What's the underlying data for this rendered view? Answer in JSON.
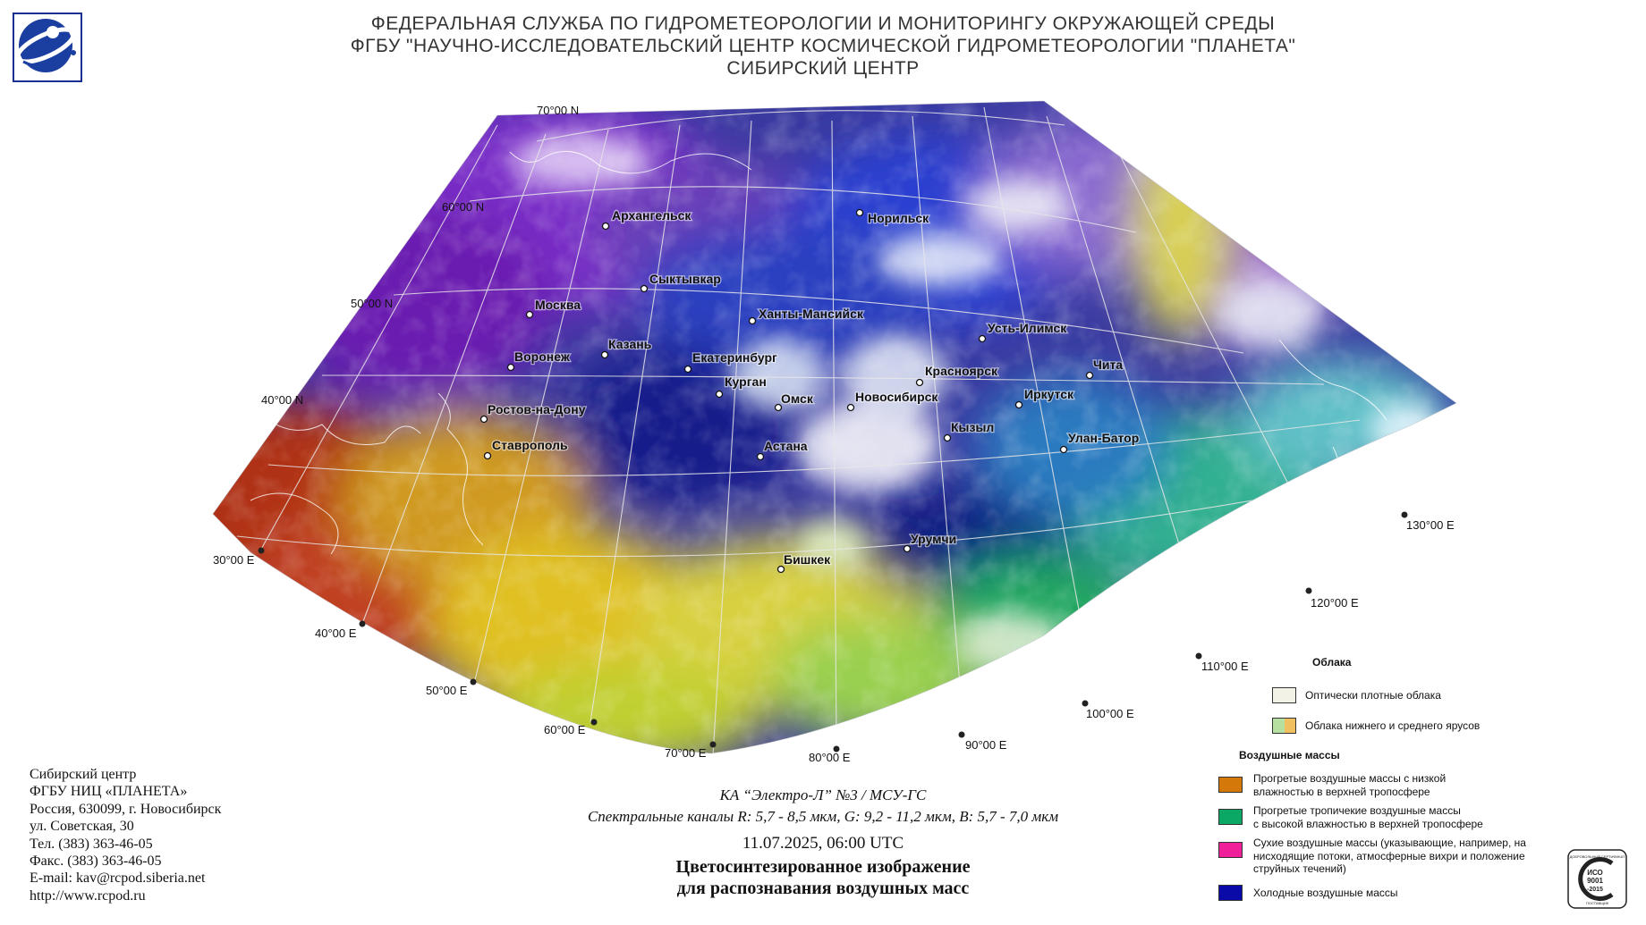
{
  "header": {
    "line1": "ФЕДЕРАЛЬНАЯ СЛУЖБА ПО ГИДРОМЕТЕОРОЛОГИИ И МОНИТОРИНГУ ОКРУЖАЮЩЕЙ СРЕДЫ",
    "line2": "ФГБУ \"НАУЧНО-ИССЛЕДОВАТЕЛЬСКИЙ ЦЕНТР КОСМИЧЕСКОЙ ГИДРОМЕТЕОРОЛОГИИ \"ПЛАНЕТА\"",
    "line3": "СИБИРСКИЙ ЦЕНТР"
  },
  "map": {
    "latitude_labels": [
      "70°00 N",
      "60°00 N",
      "50°00 N",
      "40°00 N"
    ],
    "longitude_labels": [
      "30°00 E",
      "40°00 E",
      "50°00 E",
      "60°00 E",
      "70°00 E",
      "80°00 E",
      "90°00 E",
      "100°00 E",
      "110°00 E",
      "120°00 E",
      "130°00 E"
    ],
    "cities": [
      "Архангельск",
      "Норильск",
      "Сыктывкар",
      "Москва",
      "Ханты-Мансийск",
      "Усть-Илимск",
      "Казань",
      "Воронеж",
      "Екатеринбург",
      "Красноярск",
      "Чита",
      "Курган",
      "Омск",
      "Новосибирск",
      "Иркутск",
      "Ростов-на-Дону",
      "Кызыл",
      "Улан-Батор",
      "Ставрополь",
      "Астана",
      "Урумчи",
      "Бишкек"
    ]
  },
  "contact": {
    "line1": "Сибирский центр",
    "line2": "ФГБУ НИЦ «ПЛАНЕТА»",
    "line3": "Россия, 630099, г. Новосибирск",
    "line4": "ул. Советская, 30",
    "line5": "Тел. (383) 363-46-05",
    "line6": "Факс. (383) 363-46-05",
    "line7": "E-mail: kav@rcpod.siberia.net",
    "line8": "http://www.rcpod.ru"
  },
  "caption": {
    "satellite": "КА “Электро-Л” №3 / МСУ-ГС",
    "channels": "Спектральные каналы R: 5,7 - 8,5 мкм, G: 9,2 - 11,2 мкм, B: 5,7 - 7,0 мкм",
    "datetime": "11.07.2025, 06:00 UTC",
    "title1": "Цветосинтезированное изображение",
    "title2": "для распознавания воздушных масс"
  },
  "legend": {
    "clouds_heading": "Облака",
    "clouds": [
      {
        "label": "Оптически плотные облака",
        "color": "#f2f2e6"
      },
      {
        "label": "Облака нижнего и среднего ярусов",
        "colors": [
          "#b5e0a0",
          "#f0c060"
        ]
      }
    ],
    "air_heading": "Воздушные массы",
    "air": [
      {
        "label1": "Прогретые воздушные массы с низкой",
        "label2": "влажностью в верхней тропосфере",
        "label3": "",
        "color": "#d4780a"
      },
      {
        "label1": "Прогретые тропичекие воздушные массы",
        "label2": "с высокой влажностью в верхней тропосфере",
        "label3": "",
        "color": "#0aa864"
      },
      {
        "label1": "Сухие воздушные массы (указывающие, например, на",
        "label2": "нисходящие потоки, атмосферные вихри и положение",
        "label3": "струйных течений)",
        "color": "#f0209a"
      },
      {
        "label1": "Холодные воздушные массы",
        "label2": "",
        "label3": "",
        "color": "#0a0aa8"
      }
    ]
  },
  "iso_badge": {
    "top": "ДОБРОВОЛЬНЫЙ СЕРТИФИКАТ",
    "line1": "ИСО",
    "line2": "9001",
    "line3": "-2015",
    "bottom": "ПОСТАВЩИК"
  }
}
